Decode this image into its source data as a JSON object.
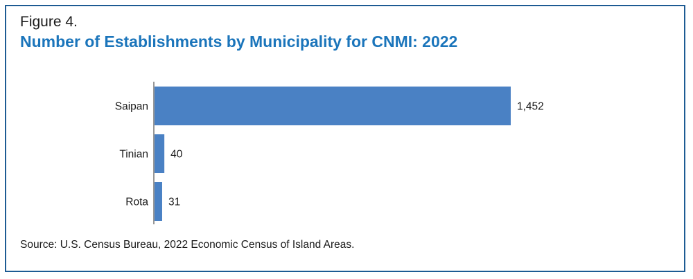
{
  "figure_label": "Figure 4.",
  "source": "Source: U.S. Census Bureau, 2022 Economic Census of Island Areas.",
  "colors": {
    "bar": "#4a81c4",
    "title": "#1b75bb",
    "border": "#1d5b93"
  },
  "chart_data": {
    "type": "bar",
    "orientation": "horizontal",
    "title": "Number of Establishments by Municipality for CNMI: 2022",
    "categories": [
      "Saipan",
      "Tinian",
      "Rota"
    ],
    "values": [
      1452,
      40,
      31
    ],
    "value_labels": [
      "1,452",
      "40",
      "31"
    ],
    "xlabel": "",
    "ylabel": "",
    "xlim": [
      0,
      1452
    ],
    "grid": false,
    "legend": "none"
  }
}
